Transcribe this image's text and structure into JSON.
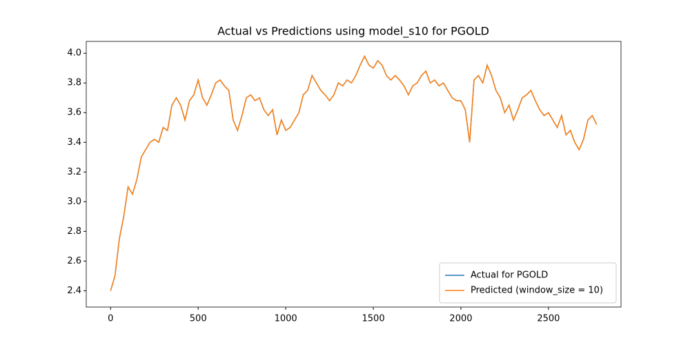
{
  "chart_data": {
    "type": "line",
    "title": "Actual vs Predictions using model_s10 for PGOLD",
    "x": [
      0,
      25,
      50,
      75,
      100,
      125,
      150,
      175,
      200,
      225,
      250,
      275,
      300,
      325,
      350,
      375,
      400,
      425,
      450,
      475,
      500,
      525,
      550,
      575,
      600,
      625,
      650,
      675,
      700,
      725,
      750,
      775,
      800,
      825,
      850,
      875,
      900,
      925,
      950,
      975,
      1000,
      1025,
      1050,
      1075,
      1100,
      1125,
      1150,
      1175,
      1200,
      1225,
      1250,
      1275,
      1300,
      1325,
      1350,
      1375,
      1400,
      1425,
      1450,
      1475,
      1500,
      1525,
      1550,
      1575,
      1600,
      1625,
      1650,
      1675,
      1700,
      1725,
      1750,
      1775,
      1800,
      1825,
      1850,
      1875,
      1900,
      1925,
      1950,
      1975,
      2000,
      2025,
      2050,
      2075,
      2100,
      2125,
      2150,
      2175,
      2200,
      2225,
      2250,
      2275,
      2300,
      2325,
      2350,
      2375,
      2400,
      2425,
      2450,
      2475,
      2500,
      2525,
      2550,
      2575,
      2600,
      2625,
      2650,
      2675,
      2700,
      2725,
      2750,
      2775
    ],
    "series": [
      {
        "name": "Actual for PGOLD",
        "color": "#1f77b4",
        "values": [
          2.4,
          2.5,
          2.75,
          2.9,
          3.1,
          3.05,
          3.15,
          3.3,
          3.35,
          3.4,
          3.42,
          3.4,
          3.5,
          3.48,
          3.65,
          3.7,
          3.65,
          3.55,
          3.68,
          3.72,
          3.82,
          3.7,
          3.65,
          3.72,
          3.8,
          3.82,
          3.78,
          3.75,
          3.55,
          3.48,
          3.58,
          3.7,
          3.72,
          3.68,
          3.7,
          3.62,
          3.58,
          3.62,
          3.45,
          3.55,
          3.48,
          3.5,
          3.55,
          3.6,
          3.72,
          3.75,
          3.85,
          3.8,
          3.75,
          3.72,
          3.68,
          3.72,
          3.8,
          3.78,
          3.82,
          3.8,
          3.85,
          3.92,
          3.98,
          3.92,
          3.9,
          3.95,
          3.92,
          3.85,
          3.82,
          3.85,
          3.82,
          3.78,
          3.72,
          3.78,
          3.8,
          3.85,
          3.88,
          3.8,
          3.82,
          3.78,
          3.8,
          3.75,
          3.7,
          3.68,
          3.68,
          3.62,
          3.4,
          3.82,
          3.85,
          3.8,
          3.92,
          3.85,
          3.75,
          3.7,
          3.6,
          3.65,
          3.55,
          3.62,
          3.7,
          3.72,
          3.75,
          3.68,
          3.62,
          3.58,
          3.6,
          3.55,
          3.5,
          3.58,
          3.45,
          3.48,
          3.4,
          3.35,
          3.42,
          3.55,
          3.58,
          3.52
        ]
      },
      {
        "name": "Predicted (window_size = 10)",
        "color": "#ff7f0e",
        "values": [
          2.4,
          2.5,
          2.75,
          2.9,
          3.1,
          3.05,
          3.15,
          3.3,
          3.35,
          3.4,
          3.42,
          3.4,
          3.5,
          3.48,
          3.65,
          3.7,
          3.65,
          3.55,
          3.68,
          3.72,
          3.82,
          3.7,
          3.65,
          3.72,
          3.8,
          3.82,
          3.78,
          3.75,
          3.55,
          3.48,
          3.58,
          3.7,
          3.72,
          3.68,
          3.7,
          3.62,
          3.58,
          3.62,
          3.45,
          3.55,
          3.48,
          3.5,
          3.55,
          3.6,
          3.72,
          3.75,
          3.85,
          3.8,
          3.75,
          3.72,
          3.68,
          3.72,
          3.8,
          3.78,
          3.82,
          3.8,
          3.85,
          3.92,
          3.98,
          3.92,
          3.9,
          3.95,
          3.92,
          3.85,
          3.82,
          3.85,
          3.82,
          3.78,
          3.72,
          3.78,
          3.8,
          3.85,
          3.88,
          3.8,
          3.82,
          3.78,
          3.8,
          3.75,
          3.7,
          3.68,
          3.68,
          3.62,
          3.4,
          3.82,
          3.85,
          3.8,
          3.92,
          3.85,
          3.75,
          3.7,
          3.6,
          3.65,
          3.55,
          3.62,
          3.7,
          3.72,
          3.75,
          3.68,
          3.62,
          3.58,
          3.6,
          3.55,
          3.5,
          3.58,
          3.45,
          3.48,
          3.4,
          3.35,
          3.42,
          3.55,
          3.58,
          3.52
        ]
      }
    ],
    "xlim": [
      -139,
      2914
    ],
    "xticks": [
      0,
      500,
      1000,
      1500,
      2000,
      2500
    ],
    "ylim": [
      2.29,
      4.08
    ],
    "yticks": [
      2.4,
      2.6,
      2.8,
      {
        "value": 3,
        "label": "3.0"
      },
      3.2,
      3.4,
      3.6,
      3.8,
      {
        "value": 4,
        "label": "4.0"
      }
    ],
    "legend": "lower right"
  }
}
